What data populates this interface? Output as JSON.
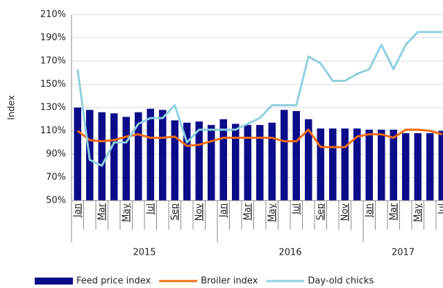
{
  "chart_data": {
    "type": "bar",
    "y_label": "Index",
    "categories": [
      "Jan",
      null,
      "Mar",
      null,
      "May",
      null,
      "Jul",
      null,
      "Sep",
      null,
      "Nov",
      null,
      "Jan",
      null,
      "Mar",
      null,
      "May",
      null,
      "Jul",
      null,
      "Sep",
      null,
      "Nov",
      null,
      "Jan",
      null,
      "Mar",
      null,
      "May",
      null,
      "Jul"
    ],
    "year_groups": [
      "2015",
      "2016",
      "2017"
    ],
    "series": [
      {
        "name": "Feed price index",
        "type": "bar",
        "color": "#0c0c8a",
        "values": [
          130,
          128,
          126,
          125,
          122,
          126,
          129,
          128,
          119,
          117,
          118,
          115,
          120,
          116,
          115,
          115,
          117,
          128,
          127,
          120,
          112,
          112,
          112,
          112,
          111,
          111,
          111,
          108,
          108,
          108,
          110
        ]
      },
      {
        "name": "Broiler index",
        "type": "line",
        "color": "#f26b0f",
        "values": [
          110,
          102,
          101,
          102,
          105,
          107,
          104,
          104,
          105,
          97,
          98,
          101,
          104,
          104,
          104,
          104,
          104,
          101,
          101,
          111,
          96,
          96,
          96,
          105,
          107,
          107,
          104,
          111,
          111,
          110,
          107
        ]
      },
      {
        "name": "Day-old chicks",
        "type": "line",
        "color": "#8fcfe0",
        "values": [
          163,
          85,
          80,
          100,
          100,
          116,
          121,
          121,
          132,
          100,
          111,
          111,
          111,
          111,
          116,
          121,
          132,
          132,
          132,
          174,
          168,
          153,
          153,
          159,
          163,
          184,
          163,
          184,
          195,
          195,
          195
        ]
      }
    ],
    "ylim": [
      50,
      210
    ],
    "yticks": [
      {
        "value": 50,
        "label": "50%"
      },
      {
        "value": 70,
        "label": "70%"
      },
      {
        "value": 90,
        "label": "90%"
      },
      {
        "value": 110,
        "label": "110%"
      },
      {
        "value": 130,
        "label": "130%"
      },
      {
        "value": 150,
        "label": "150%"
      },
      {
        "value": 170,
        "label": "170%"
      },
      {
        "value": 190,
        "label": "190%"
      },
      {
        "value": 210,
        "label": "210%"
      }
    ],
    "grid": true,
    "legend": "bottom"
  }
}
